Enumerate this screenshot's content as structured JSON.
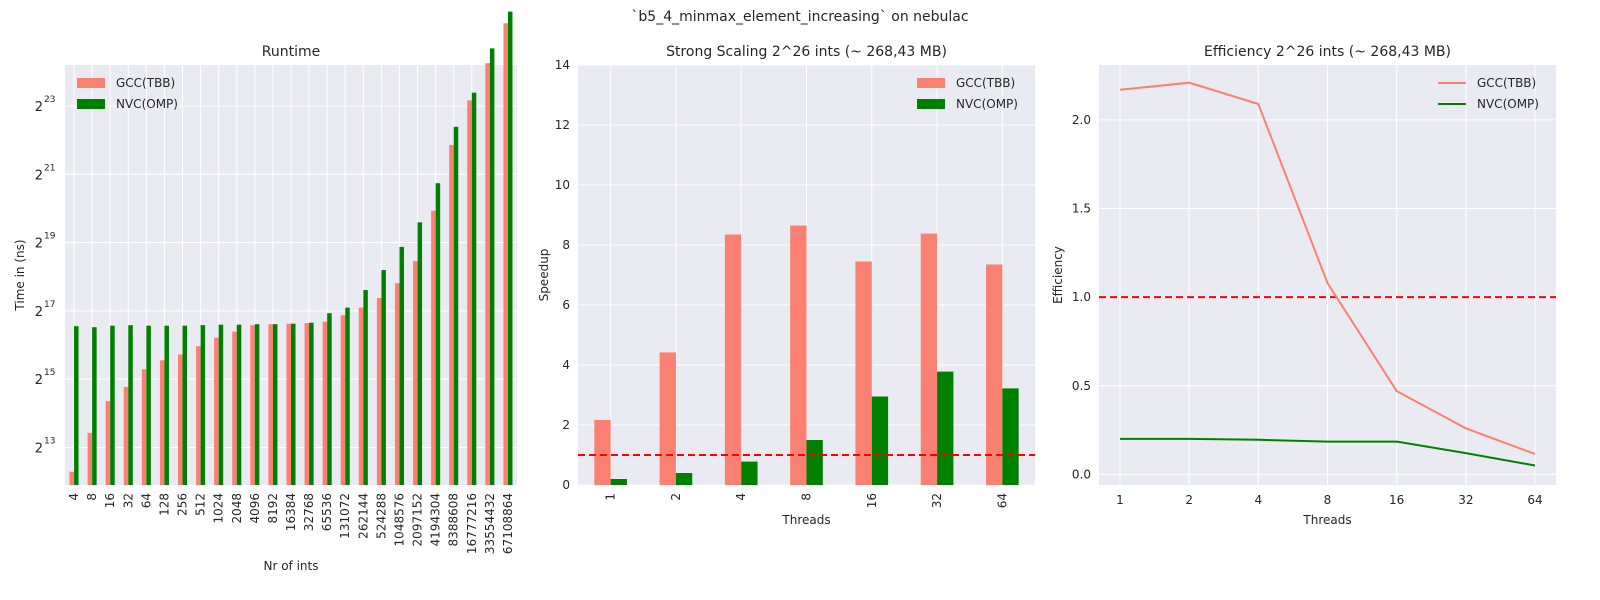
{
  "suptitle": "`b5_4_minmax_element_increasing` on nebulac",
  "colors": {
    "gcc": "#fa8072",
    "nvc": "#008000",
    "axes_bg": "#eaeaf2",
    "grid": "#ffffff",
    "ref_line": "#ff0000"
  },
  "chart_data": [
    {
      "type": "bar",
      "title": "Runtime",
      "xlabel": "Nr of ints",
      "ylabel": "Time in (ns)",
      "yscale": "log2",
      "ylim_exp": [
        11.9,
        24.2
      ],
      "ytick_base": "2",
      "ytick_exponents": [
        "13",
        "15",
        "17",
        "19",
        "21",
        "23"
      ],
      "legend_position": "top-left",
      "grid": true,
      "categories": [
        "4",
        "8",
        "16",
        "32",
        "64",
        "128",
        "256",
        "512",
        "1024",
        "2048",
        "4096",
        "8192",
        "16384",
        "32768",
        "65536",
        "131072",
        "262144",
        "524288",
        "1048576",
        "2097152",
        "4194304",
        "8388608",
        "16777216",
        "33554432",
        "67108864"
      ],
      "series": [
        {
          "name": "GCC(TBB)",
          "values": [
            5000,
            11000,
            21000,
            28000,
            40000,
            48000,
            54000,
            64000,
            76000,
            86000,
            98000,
            100000,
            101000,
            102000,
            105000,
            120000,
            140000,
            170000,
            230000,
            360000,
            1000000,
            3800000,
            9400000,
            20000000,
            45000000
          ]
        },
        {
          "name": "NVC(OMP)",
          "values": [
            96000,
            94000,
            97000,
            98000,
            97000,
            97000,
            97000,
            98000,
            99000,
            99000,
            100000,
            100000,
            101000,
            103000,
            125000,
            140000,
            200000,
            300000,
            480000,
            790000,
            1750000,
            5500000,
            11000000,
            27000000,
            57000000
          ]
        }
      ]
    },
    {
      "type": "bar",
      "title": "Strong Scaling 2^26 ints (~ 268,43 MB)",
      "xlabel": "Threads",
      "ylabel": "Speedup",
      "ylim": [
        0,
        14
      ],
      "yticks": [
        "0",
        "2",
        "4",
        "6",
        "8",
        "10",
        "12",
        "14"
      ],
      "legend_position": "top-right",
      "grid": true,
      "reference_line": 1,
      "categories": [
        "1",
        "2",
        "4",
        "8",
        "16",
        "32",
        "64"
      ],
      "series": [
        {
          "name": "GCC(TBB)",
          "values": [
            2.17,
            4.42,
            8.35,
            8.65,
            7.45,
            8.38,
            7.35
          ]
        },
        {
          "name": "NVC(OMP)",
          "values": [
            0.2,
            0.4,
            0.78,
            1.5,
            2.95,
            3.78,
            3.22
          ]
        }
      ]
    },
    {
      "type": "line",
      "title": "Efficiency 2^26 ints (~ 268,43 MB)",
      "xlabel": "Threads",
      "ylabel": "Efficiency",
      "ylim": [
        -0.06,
        2.31
      ],
      "yticks": [
        "0.0",
        "0.5",
        "1.0",
        "1.5",
        "2.0"
      ],
      "legend_position": "top-right",
      "grid": true,
      "reference_line": 1,
      "categories": [
        "1",
        "2",
        "4",
        "8",
        "16",
        "32",
        "64"
      ],
      "series": [
        {
          "name": "GCC(TBB)",
          "values": [
            2.17,
            2.21,
            2.09,
            1.08,
            0.47,
            0.26,
            0.115
          ]
        },
        {
          "name": "NVC(OMP)",
          "values": [
            0.2,
            0.2,
            0.195,
            0.185,
            0.185,
            0.12,
            0.05
          ]
        }
      ]
    }
  ]
}
